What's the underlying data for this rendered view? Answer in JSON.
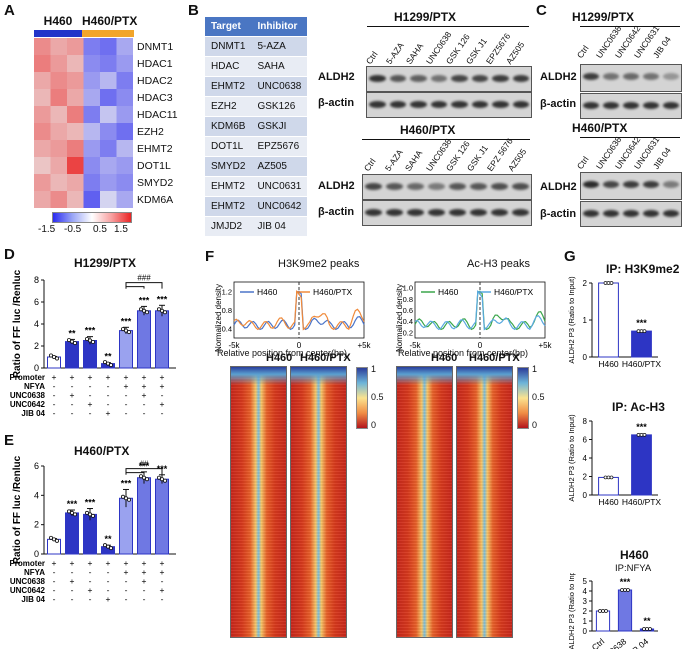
{
  "panels": {
    "A": "A",
    "B": "B",
    "C": "C",
    "D": "D",
    "E": "E",
    "F": "F",
    "G": "G"
  },
  "panelA": {
    "group1": "H460",
    "group2": "H460/PTX",
    "genes": [
      "DNMT1",
      "HDAC1",
      "HDAC2",
      "HDAC3",
      "HDAC11",
      "EZH2",
      "EHMT2",
      "DOT1L",
      "SMYD2",
      "KDM6A"
    ],
    "scale_ticks": [
      "-1.5",
      "-0.5",
      "0.5",
      "1.5"
    ],
    "colors": {
      "group1": "#2334c9",
      "group2": "#f2a52b"
    },
    "matrix": [
      [
        0.8,
        0.6,
        0.7,
        -0.9,
        -1.0,
        -0.6
      ],
      [
        0.9,
        0.7,
        0.5,
        -0.8,
        -0.9,
        -0.7
      ],
      [
        0.6,
        0.8,
        0.7,
        -0.7,
        -0.5,
        -0.9
      ],
      [
        0.5,
        0.9,
        0.6,
        -0.6,
        -1.0,
        -0.8
      ],
      [
        0.7,
        0.5,
        0.9,
        -0.9,
        -0.4,
        -0.7
      ],
      [
        0.8,
        0.6,
        0.5,
        -0.5,
        -0.8,
        -1.0
      ],
      [
        0.6,
        0.7,
        0.9,
        -0.7,
        -0.9,
        -0.5
      ],
      [
        0.4,
        0.6,
        1.3,
        -0.8,
        -0.6,
        -0.7
      ],
      [
        0.7,
        0.5,
        0.6,
        -0.9,
        -0.7,
        -0.8
      ],
      [
        0.6,
        0.8,
        0.5,
        -1.1,
        -0.3,
        -0.6
      ]
    ]
  },
  "panelB": {
    "header": [
      "Target",
      "Inhibitor"
    ],
    "rows": [
      [
        "DNMT1",
        "5-AZA"
      ],
      [
        "HDAC",
        "SAHA"
      ],
      [
        "EHMT2",
        "UNC0638"
      ],
      [
        "EZH2",
        "GSK126"
      ],
      [
        "KDM6B",
        "GSKJI"
      ],
      [
        "DOT1L",
        "EPZ5676"
      ],
      [
        "SMYD2",
        "AZ505"
      ],
      [
        "EHMT2",
        "UNC0631"
      ],
      [
        "EHMT2",
        "UNC0642"
      ],
      [
        "JMJD2",
        "JIB 04"
      ]
    ],
    "blot1_title": "H1299/PTX",
    "blot2_title": "H460/PTX",
    "lanes": [
      "Ctrl",
      "5-AZA",
      "SAHA",
      "UNC0638",
      "GSK 126",
      "GSK J1",
      "EPZ5676",
      "AZ505"
    ],
    "lanes2": [
      "Ctrl",
      "5-AZA",
      "SAHA",
      "UNC0638",
      "GSK 126",
      "GSK J1",
      "EPZ 5676",
      "AZ505"
    ],
    "band1": "ALDH2",
    "band2": "β-actin"
  },
  "panelC": {
    "blot1_title": "H1299/PTX",
    "blot2_title": "H460/PTX",
    "lanes": [
      "Ctrl",
      "UNC0638",
      "UNC0642",
      "UNC0631",
      "JIB 04"
    ],
    "band1": "ALDH2",
    "band2": "β-actin"
  },
  "panelD": {
    "title": "H1299/PTX",
    "ylabel": "Ratio of FF luc /Renluc",
    "sig_bracket": "###",
    "chart_data": {
      "type": "bar",
      "ylim": [
        0,
        8
      ],
      "yticks": [
        "0",
        "2",
        "4",
        "6",
        "8"
      ],
      "values": [
        1.0,
        2.4,
        2.5,
        0.4,
        3.4,
        5.2,
        5.2
      ],
      "errors": [
        0.05,
        0.2,
        0.35,
        0.08,
        0.3,
        0.4,
        0.5
      ],
      "stars": [
        "",
        "**",
        "***",
        "**",
        "***",
        "***",
        "***"
      ],
      "colors": [
        "#ffffff",
        "#2d35c4",
        "#2d35c4",
        "#2d35c4",
        "#9aa2ef",
        "#6f78e3",
        "#6f78e3"
      ]
    }
  },
  "panelE": {
    "title": "H460/PTX",
    "ylabel": "Ratio of FF luc /Renluc",
    "sig_bracket": "##",
    "chart_data": {
      "type": "bar",
      "ylim": [
        0,
        6
      ],
      "yticks": [
        "0",
        "2",
        "4",
        "6"
      ],
      "values": [
        1.0,
        2.8,
        2.7,
        0.5,
        3.8,
        5.2,
        5.1
      ],
      "errors": [
        0.05,
        0.2,
        0.4,
        0.1,
        0.6,
        0.4,
        0.3
      ],
      "stars": [
        "",
        "***",
        "***",
        "**",
        "***",
        "***",
        "***"
      ],
      "colors": [
        "#ffffff",
        "#2d35c4",
        "#2d35c4",
        "#2d35c4",
        "#9aa2ef",
        "#6f78e3",
        "#6f78e3"
      ]
    }
  },
  "treatments": {
    "rows": [
      "Promoter",
      "NFYA",
      "UNC0638",
      "UNC0642",
      "JIB 04"
    ],
    "signs": [
      [
        "+",
        "+",
        "+",
        "+",
        "+",
        "+",
        "+"
      ],
      [
        "-",
        "-",
        "-",
        "-",
        "+",
        "+",
        "+"
      ],
      [
        "-",
        "+",
        "-",
        "-",
        "-",
        "+",
        "-"
      ],
      [
        "-",
        "-",
        "+",
        "-",
        "-",
        "-",
        "+"
      ],
      [
        "-",
        "-",
        "-",
        "+",
        "-",
        "-",
        "-"
      ]
    ]
  },
  "panelF": {
    "plot1": {
      "title": "H3K9me2 peaks",
      "legend": [
        "H460",
        "H460/PTX"
      ],
      "colors": [
        "#4a74c9",
        "#f08a3a"
      ]
    },
    "plot2": {
      "title": "Ac-H3 peaks",
      "legend": [
        "H460",
        "H460/PTX"
      ],
      "colors": [
        "#3aa64a",
        "#5aa9e0"
      ]
    },
    "ylabel": "Normalized density",
    "xlabel": "Relative position  from center(bp)",
    "xticks": [
      "-5k",
      "0",
      "+5k"
    ],
    "yticks1": [
      "0.4",
      "0.8",
      "1.2"
    ],
    "yticks2": [
      "0.2",
      "0.4",
      "0.6",
      "0.8",
      "1.0"
    ],
    "heat_labels": [
      "H460",
      "H460/PTX",
      "H460",
      "H460/PTX"
    ],
    "cbar_ticks": [
      "1",
      "0.5",
      "0"
    ]
  },
  "panelG": {
    "g1": {
      "title": "IP: H3K9me2",
      "ylabel": "ALDH2 P3 (Ratio to Input)",
      "chart_data": {
        "type": "bar",
        "categories": [
          "H460",
          "H460/PTX"
        ],
        "values": [
          2.0,
          0.7
        ],
        "ylim": [
          0,
          2
        ],
        "yticks": [
          "0",
          "1",
          "2"
        ],
        "stars": [
          "",
          "***"
        ]
      }
    },
    "g2": {
      "title": "IP: Ac-H3",
      "ylabel": "ALDH2 P3 (Ratio to Input)",
      "chart_data": {
        "type": "bar",
        "categories": [
          "H460",
          "H460/PTX"
        ],
        "values": [
          1.9,
          6.5
        ],
        "ylim": [
          0,
          8
        ],
        "yticks": [
          "0",
          "2",
          "4",
          "6",
          "8"
        ],
        "stars": [
          "",
          "***"
        ]
      }
    },
    "g3": {
      "title": "H460",
      "subtitle": "IP:NFYA",
      "ylabel": "ALDH2 P3 (Ratio to Input)",
      "chart_data": {
        "type": "bar",
        "categories": [
          "Ctrl",
          "UNC0638",
          "JIB 04"
        ],
        "values": [
          2.0,
          4.1,
          0.2
        ],
        "ylim": [
          0,
          5
        ],
        "yticks": [
          "0",
          "1",
          "2",
          "3",
          "4",
          "5"
        ],
        "stars": [
          "",
          "***",
          "**"
        ]
      }
    }
  }
}
